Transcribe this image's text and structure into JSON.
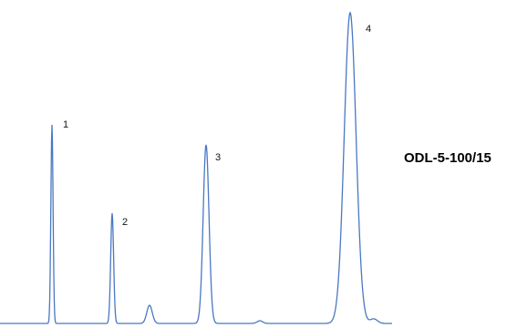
{
  "chart_data": {
    "type": "line",
    "title": "ODL-5-100/15",
    "xlabel": "",
    "ylabel": "",
    "grid": false,
    "legend": "none",
    "line_color": "#4a78c2",
    "peaks": [
      {
        "label": "1",
        "value": 1
      },
      {
        "label": "2",
        "value": 2
      },
      {
        "label": "3",
        "value": 3
      },
      {
        "label": "4",
        "value": 4
      }
    ]
  }
}
